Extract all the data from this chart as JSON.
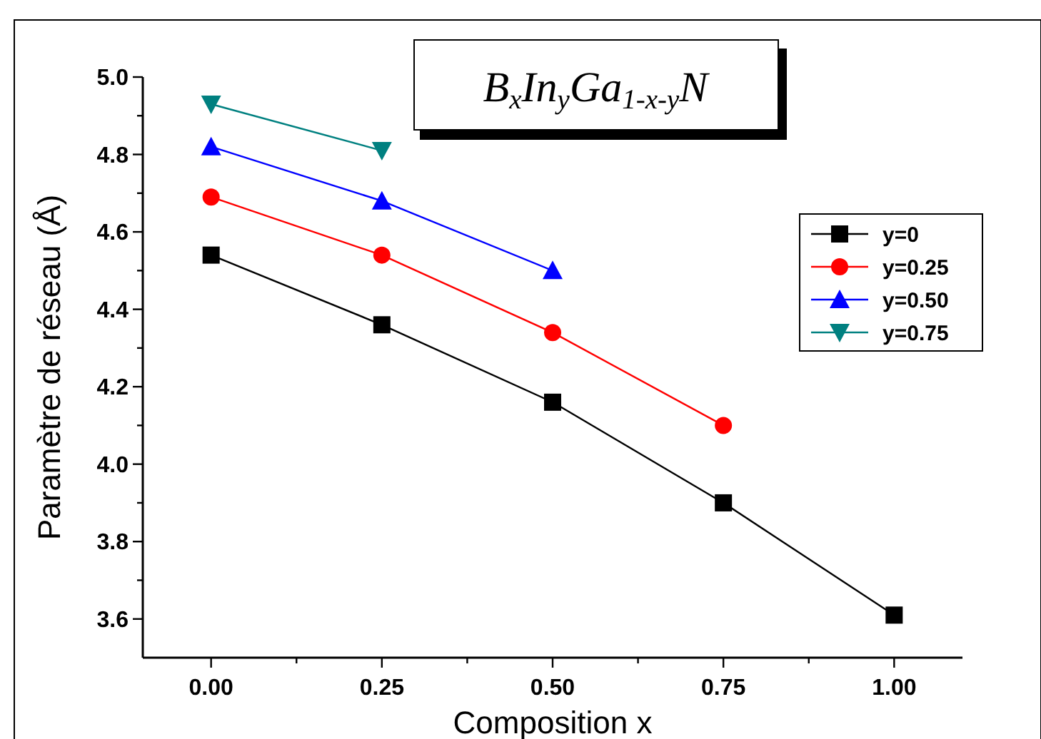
{
  "chart_data": {
    "type": "line",
    "title": "B$_{x}$In$_{y}$Ga$_{1-x-y}$N",
    "xlabel": "Composition x",
    "ylabel": "Paramètre de réseau (Å)",
    "x": [
      0,
      0.25,
      0.5,
      0.75,
      1
    ],
    "series": [
      {
        "name": "y=0",
        "color": "#000000",
        "marker": "square",
        "values": [
          4.54,
          4.36,
          4.16,
          3.9,
          3.61
        ]
      },
      {
        "name": "y=0.25",
        "color": "#ff0000",
        "marker": "circle",
        "values": [
          4.69,
          4.54,
          4.34,
          4.1,
          null
        ]
      },
      {
        "name": "y=0.50",
        "color": "#0000ff",
        "marker": "triangle",
        "values": [
          4.82,
          4.68,
          4.5,
          null,
          null
        ]
      },
      {
        "name": "y=0.75",
        "color": "#008080",
        "marker": "triangle-down",
        "values": [
          4.93,
          4.81,
          null,
          null,
          null
        ]
      }
    ],
    "xlim": [
      -0.1,
      1.1
    ],
    "xticks": [
      {
        "value": 0,
        "label": "0.00"
      },
      {
        "value": 0.125,
        "label": null
      },
      {
        "value": 0.25,
        "label": "0.25"
      },
      {
        "value": 0.375,
        "label": null
      },
      {
        "value": 0.5,
        "label": "0.50"
      },
      {
        "value": 0.625,
        "label": null
      },
      {
        "value": 0.75,
        "label": "0.75"
      },
      {
        "value": 0.875,
        "label": null
      },
      {
        "value": 1,
        "label": "1.00"
      }
    ],
    "ylim": [
      3.5,
      5.0
    ],
    "yticks": [
      {
        "value": 3.6,
        "label": "3.6"
      },
      {
        "value": 3.7,
        "label": null
      },
      {
        "value": 3.8,
        "label": "3.8"
      },
      {
        "value": 3.9,
        "label": null
      },
      {
        "value": 4.0,
        "label": "4.0"
      },
      {
        "value": 4.1,
        "label": null
      },
      {
        "value": 4.2,
        "label": "4.2"
      },
      {
        "value": 4.3,
        "label": null
      },
      {
        "value": 4.4,
        "label": "4.4"
      },
      {
        "value": 4.5,
        "label": null
      },
      {
        "value": 4.6,
        "label": "4.6"
      },
      {
        "value": 4.7,
        "label": null
      },
      {
        "value": 4.8,
        "label": "4.8"
      },
      {
        "value": 4.9,
        "label": null
      },
      {
        "value": 5.0,
        "label": "5.0"
      }
    ],
    "grid": false,
    "legend": "right",
    "line_style": "solid"
  }
}
